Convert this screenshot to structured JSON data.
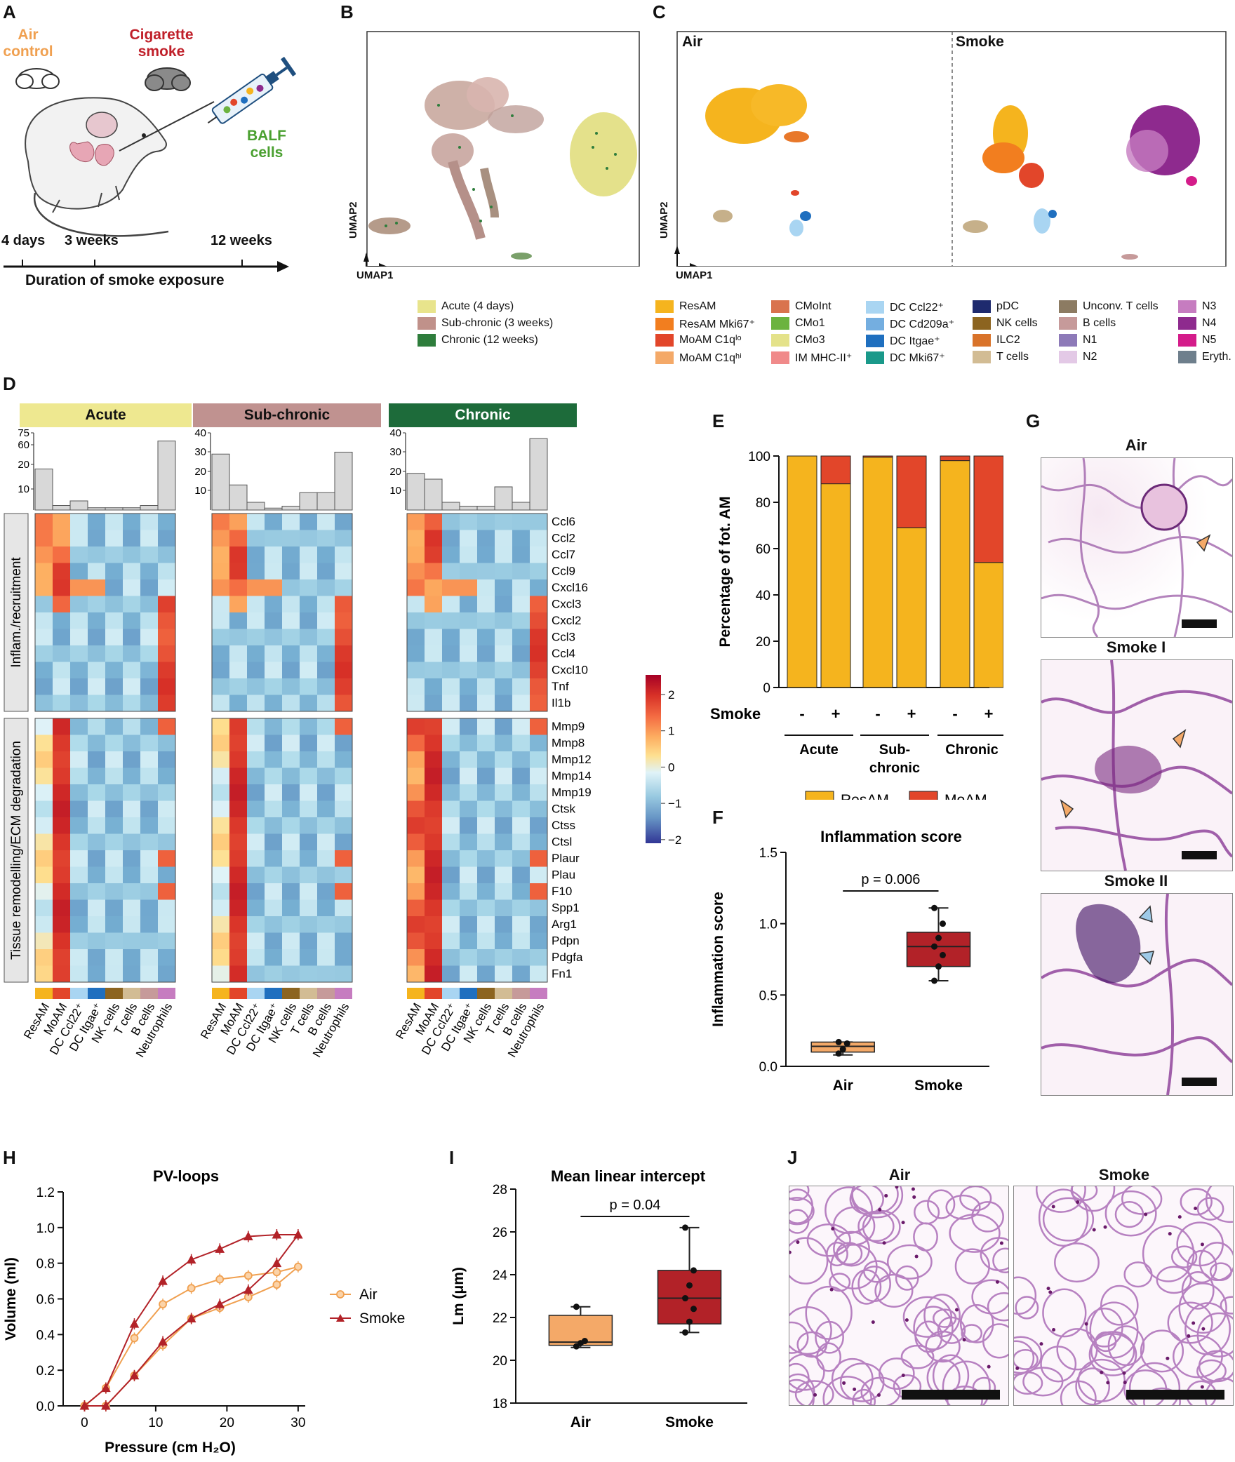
{
  "panels": {
    "A": "A",
    "B": "B",
    "C": "C",
    "D": "D",
    "E": "E",
    "F": "F",
    "G": "G",
    "H": "H",
    "I": "I",
    "J": "J"
  },
  "panelA": {
    "air_l1": "Air",
    "air_l2": "control",
    "smoke_l1": "Cigarette",
    "smoke_l2": "smoke",
    "balf_l1": "BALF",
    "balf_l2": "cells",
    "timepoints": [
      "4 days",
      "3 weeks",
      "12 weeks"
    ],
    "axis_label": "Duration of smoke exposure",
    "colors": {
      "air": "#f0a050",
      "smoke": "#c0202a",
      "balf": "#4aa030"
    }
  },
  "panelB": {
    "xlabel": "UMAP1",
    "ylabel": "UMAP2",
    "legend": [
      {
        "label": "Acute (4 days)",
        "color": "#e8e48c"
      },
      {
        "label": "Sub-chronic (3 weeks)",
        "color": "#c0918a"
      },
      {
        "label": "Chronic (12 weeks)",
        "color": "#2e7d3c"
      }
    ]
  },
  "panelC": {
    "air": "Air",
    "smoke": "Smoke",
    "xlabel": "UMAP1",
    "ylabel": "UMAP2",
    "legend": [
      {
        "label": "ResAM",
        "color": "#f5b41e"
      },
      {
        "label": "ResAM Mki67⁺",
        "color": "#f27e1f"
      },
      {
        "label": "MoAM C1qˡᵒ",
        "color": "#e2462a"
      },
      {
        "label": "MoAM C1qʰⁱ",
        "color": "#f4a968"
      },
      {
        "label": "CMoInt",
        "color": "#d9734e"
      },
      {
        "label": "CMo1",
        "color": "#6cb33f"
      },
      {
        "label": "CMo3",
        "color": "#e4e28a"
      },
      {
        "label": "IM MHC-II⁺",
        "color": "#f08a8a"
      },
      {
        "label": "DC Ccl22⁺",
        "color": "#a9d5f2"
      },
      {
        "label": "DC Cd209a⁺",
        "color": "#74aee0"
      },
      {
        "label": "DC Itgae⁺",
        "color": "#1f6fbf"
      },
      {
        "label": "DC Mki67⁺",
        "color": "#1a998a"
      },
      {
        "label": "pDC",
        "color": "#1e2a6e"
      },
      {
        "label": "NK cells",
        "color": "#8c6420"
      },
      {
        "label": "ILC2",
        "color": "#d9732a"
      },
      {
        "label": "T cells",
        "color": "#d2bc94"
      },
      {
        "label": "Unconv. T cells",
        "color": "#8c7b62"
      },
      {
        "label": "B cells",
        "color": "#c69a9a"
      },
      {
        "label": "N1",
        "color": "#8d7ab8"
      },
      {
        "label": "N2",
        "color": "#e3c9e6"
      },
      {
        "label": "N3",
        "color": "#c67cc0"
      },
      {
        "label": "N4",
        "color": "#8e2a8e"
      },
      {
        "label": "N5",
        "color": "#d41c8a"
      },
      {
        "label": "Eryth.",
        "color": "#6e7f8c"
      }
    ]
  },
  "panelD": {
    "groups": [
      {
        "label": "Acute",
        "color": "#eee890"
      },
      {
        "label": "Sub-chronic",
        "color": "#c09290"
      },
      {
        "label": "Chronic",
        "color": "#1d6b3a"
      }
    ],
    "row_groups": [
      "Inflam./recruitment",
      "Tissue remodelling/ECM degradation"
    ],
    "genes_inflam": [
      "Ccl6",
      "Ccl2",
      "Ccl7",
      "Ccl9",
      "Cxcl16",
      "Cxcl3",
      "Cxcl2",
      "Ccl3",
      "Ccl4",
      "Cxcl10",
      "Tnf",
      "Il1b"
    ],
    "genes_tissue": [
      "Mmp9",
      "Mmp8",
      "Mmp12",
      "Mmp14",
      "Mmp19",
      "Ctsk",
      "Ctss",
      "Ctsl",
      "Plaur",
      "Plau",
      "F10",
      "Spp1",
      "Arg1",
      "Pdpn",
      "Pdgfa",
      "Fn1"
    ],
    "cells": [
      "ResAM",
      "MoAM",
      "DC Ccl22⁺",
      "DC Itgae⁺",
      "NK cells",
      "T cells",
      "B cells",
      "Neutrophils"
    ],
    "cell_colors": [
      "#f5b41e",
      "#e2462a",
      "#a9d5f2",
      "#1f6fbf",
      "#8c6420",
      "#d2bc94",
      "#c69a9a",
      "#c67cc0"
    ],
    "bar_axes": [
      {
        "ticks": [
          "75",
          "60",
          "20",
          "10"
        ]
      },
      {
        "ticks": [
          "40",
          "30",
          "20",
          "10"
        ]
      },
      {
        "ticks": [
          "40",
          "30",
          "20",
          "10"
        ]
      }
    ],
    "bar_values": [
      [
        18,
        2,
        4,
        1,
        1,
        1,
        2,
        68
      ],
      [
        29,
        13,
        4,
        1,
        2,
        9,
        9,
        30
      ],
      [
        19,
        16,
        4,
        2,
        2,
        12,
        4,
        37
      ]
    ],
    "colorbar_ticks": [
      "2",
      "1",
      "0",
      "−1",
      "−2"
    ]
  },
  "chart_data": [
    {
      "type": "bar",
      "title": "",
      "ylabel": "Percentage of fot. AM",
      "ylim": [
        0,
        100
      ],
      "yticks": [
        "0",
        "20",
        "40",
        "60",
        "80",
        "100"
      ],
      "row_label": "Smoke",
      "categories": [
        "-",
        "+",
        "-",
        "+",
        "-",
        "+"
      ],
      "group_labels": [
        "Acute",
        "Sub-chronic",
        "Chronic"
      ],
      "group_label_lines": [
        [
          "Acute"
        ],
        [
          "Sub-",
          "chronic"
        ],
        [
          "Chronic"
        ]
      ],
      "series": [
        {
          "name": "ResAM",
          "color": "#f5b41e",
          "values": [
            100,
            88,
            99.5,
            69,
            98,
            54
          ]
        },
        {
          "name": "MoAM",
          "color": "#e2462a",
          "values": [
            0,
            12,
            0.5,
            31,
            2,
            46
          ]
        }
      ]
    },
    {
      "type": "box",
      "title": "Inflammation score",
      "ylabel": "Inflammation score",
      "ylim": [
        0,
        1.5
      ],
      "yticks": [
        "0.0",
        "0.5",
        "1.0",
        "1.5"
      ],
      "categories": [
        "Air",
        "Smoke"
      ],
      "annotation": "p  = 0.006",
      "boxes": [
        {
          "name": "Air",
          "color": "#f4a968",
          "min": 0.08,
          "q1": 0.1,
          "median": 0.14,
          "q3": 0.17,
          "max": 0.17,
          "points": [
            0.09,
            0.12,
            0.16,
            0.17
          ]
        },
        {
          "name": "Smoke",
          "color": "#b22228",
          "min": 0.6,
          "q1": 0.7,
          "median": 0.84,
          "q3": 0.94,
          "max": 1.11,
          "points": [
            0.6,
            0.7,
            0.78,
            0.84,
            0.9,
            1.0,
            1.11
          ]
        }
      ]
    },
    {
      "type": "line",
      "title": "PV-loops",
      "xlabel": "Pressure (cm H₂O)",
      "ylabel": "Volume (ml)",
      "xlim": [
        -3,
        31
      ],
      "ylim": [
        0,
        1.2
      ],
      "xticks": [
        "0",
        "10",
        "20",
        "30"
      ],
      "yticks": [
        "0.0",
        "0.2",
        "0.4",
        "0.6",
        "0.8",
        "1.0",
        "1.2"
      ],
      "series": [
        {
          "name": "Air",
          "color": "#f0a050",
          "marker": "circle",
          "x": [
            0,
            3,
            7,
            11,
            15,
            19,
            23,
            27,
            30,
            27,
            23,
            19,
            15,
            11,
            7,
            3,
            0
          ],
          "y": [
            0,
            0,
            0.17,
            0.34,
            0.49,
            0.55,
            0.61,
            0.68,
            0.78,
            0.75,
            0.73,
            0.71,
            0.66,
            0.57,
            0.38,
            0.1,
            0
          ]
        },
        {
          "name": "Smoke",
          "color": "#b22228",
          "marker": "triangle",
          "x": [
            0,
            3,
            7,
            11,
            15,
            19,
            23,
            27,
            30,
            27,
            23,
            19,
            15,
            11,
            7,
            3,
            0
          ],
          "y": [
            0,
            0,
            0.17,
            0.36,
            0.49,
            0.57,
            0.65,
            0.8,
            0.96,
            0.96,
            0.95,
            0.88,
            0.82,
            0.7,
            0.46,
            0.1,
            0
          ]
        }
      ]
    },
    {
      "type": "box",
      "title": "Mean linear intercept",
      "ylabel": "Lm (μm)",
      "ylim": [
        18,
        28
      ],
      "yticks": [
        "18",
        "20",
        "22",
        "24",
        "26",
        "28"
      ],
      "categories": [
        "Air",
        "Smoke"
      ],
      "annotation": "p  = 0.04",
      "boxes": [
        {
          "name": "Air",
          "color": "#f4a968",
          "min": 20.6,
          "q1": 20.7,
          "median": 20.85,
          "q3": 22.1,
          "max": 22.5,
          "points": [
            20.65,
            20.8,
            20.9,
            22.5
          ]
        },
        {
          "name": "Smoke",
          "color": "#b22228",
          "min": 21.3,
          "q1": 21.7,
          "median": 22.9,
          "q3": 24.2,
          "max": 26.2,
          "points": [
            21.3,
            21.8,
            22.4,
            22.9,
            23.5,
            24.2,
            26.2
          ]
        }
      ]
    }
  ],
  "panelG": {
    "labels": [
      "Air",
      "Smoke I",
      "Smoke II"
    ]
  },
  "panelJ": {
    "labels": [
      "Air",
      "Smoke"
    ]
  }
}
